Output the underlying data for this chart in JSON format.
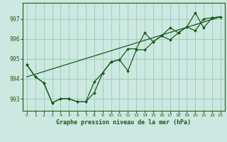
{
  "xlabel": "Graphe pression niveau de la mer (hPa)",
  "xlim": [
    -0.5,
    23.5
  ],
  "ylim": [
    992.4,
    997.8
  ],
  "yticks": [
    993,
    994,
    995,
    996,
    997
  ],
  "xticks": [
    0,
    1,
    2,
    3,
    4,
    5,
    6,
    7,
    8,
    9,
    10,
    11,
    12,
    13,
    14,
    15,
    16,
    17,
    18,
    19,
    20,
    21,
    22,
    23
  ],
  "bg_color": "#cce8e0",
  "line_color": "#1a5c1a",
  "grid_color": "#99ccbb",
  "line1_x": [
    0,
    1,
    2,
    3,
    4,
    5,
    6,
    7,
    8,
    9,
    10,
    11,
    12,
    13,
    14,
    15,
    16,
    17,
    18,
    19,
    20,
    21,
    22,
    23
  ],
  "line1_y": [
    994.7,
    994.1,
    993.8,
    992.8,
    993.0,
    993.0,
    992.85,
    992.85,
    993.85,
    994.3,
    994.85,
    994.95,
    995.5,
    995.5,
    996.3,
    995.85,
    996.15,
    996.55,
    996.3,
    996.6,
    997.3,
    996.55,
    997.05,
    997.1
  ],
  "line2_x": [
    0,
    1,
    2,
    3,
    4,
    5,
    6,
    7,
    8,
    9,
    10,
    11,
    12,
    13,
    14,
    15,
    16,
    17,
    18,
    19,
    20,
    21,
    22,
    23
  ],
  "line2_y": [
    994.7,
    994.1,
    993.8,
    992.8,
    993.0,
    993.0,
    992.85,
    992.85,
    993.3,
    994.3,
    994.85,
    994.95,
    994.4,
    995.45,
    995.45,
    995.85,
    996.15,
    995.95,
    996.3,
    996.6,
    996.4,
    997.0,
    997.05,
    997.1
  ],
  "line3_x": [
    0,
    23
  ],
  "line3_y": [
    994.1,
    997.1
  ]
}
